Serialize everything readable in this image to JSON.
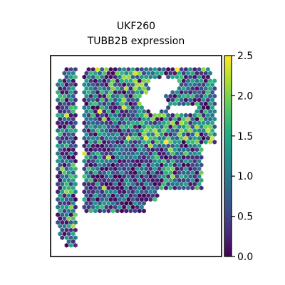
{
  "chart_data": {
    "type": "scatter",
    "title": "UKF260",
    "subtitle": "TUBB2B expression",
    "xlabel": "",
    "ylabel": "",
    "colorbar": {
      "colormap": "viridis",
      "range": [
        0.0,
        2.5
      ],
      "ticks": [
        0.0,
        0.5,
        1.0,
        1.5,
        2.0,
        2.5
      ],
      "tick_labels": [
        "0.0",
        "0.5",
        "1.0",
        "1.5",
        "2.0",
        "2.5"
      ]
    },
    "marker": "hexagon",
    "axes_ticks": "none",
    "grid": false
  }
}
